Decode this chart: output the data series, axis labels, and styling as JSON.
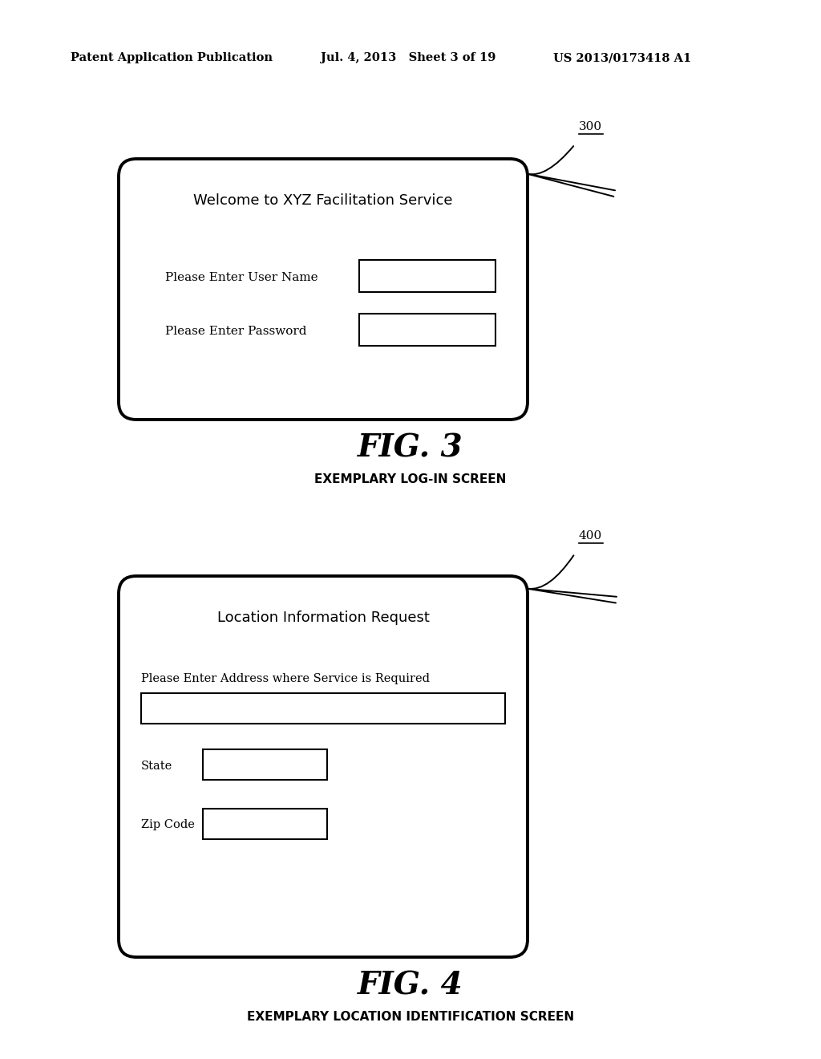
{
  "bg_color": "#ffffff",
  "header_left": "Patent Application Publication",
  "header_mid": "Jul. 4, 2013   Sheet 3 of 19",
  "header_right": "US 2013/0173418 A1",
  "fig3_label": "FIG. 3",
  "fig3_caption": "EXEMPLARY LOG-IN SCREEN",
  "fig4_label": "FIG. 4",
  "fig4_caption": "EXEMPLARY LOCATION IDENTIFICATION SCREEN",
  "box1_ref": "300",
  "box1_title": "Welcome to XYZ Facilitation Service",
  "box1_field1": "Please Enter User Name",
  "box1_field2": "Please Enter Password",
  "box2_ref": "400",
  "box2_title": "Location Information Request",
  "box2_field_addr": "Please Enter Address where Service is Required",
  "box2_field_state": "State",
  "box2_field_zip": "Zip Code"
}
